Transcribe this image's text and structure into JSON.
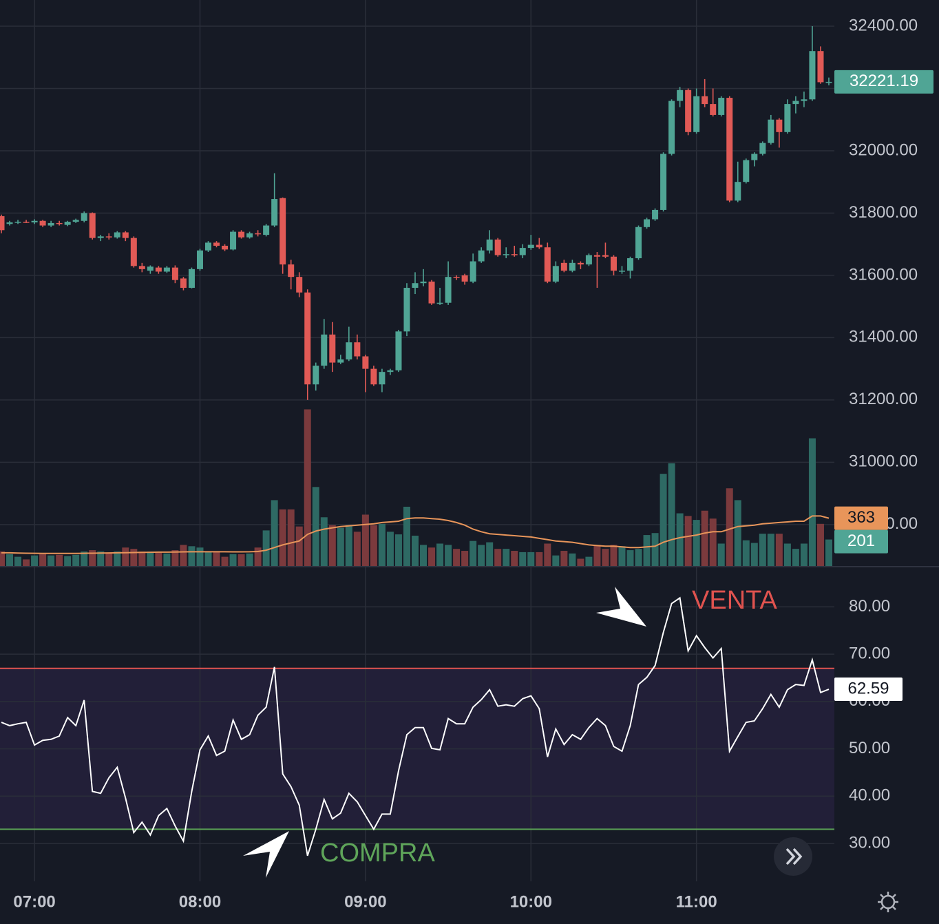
{
  "chart_data": [
    {
      "type": "candlestick",
      "x": [
        408,
        411,
        414,
        417,
        420,
        423,
        426,
        429,
        432,
        435,
        438,
        441,
        444,
        447,
        450,
        453,
        456,
        459,
        462,
        465,
        468,
        471,
        474,
        477,
        480,
        483,
        486,
        489,
        492,
        495,
        498,
        501,
        504,
        507,
        510,
        513,
        516,
        519,
        522,
        525,
        528,
        531,
        534,
        537,
        540,
        543,
        546,
        549,
        552,
        555,
        558,
        561,
        564,
        567,
        570,
        573,
        576,
        579,
        582,
        585,
        588,
        591,
        594,
        597,
        600,
        603,
        606,
        609,
        612,
        615,
        618,
        621,
        624,
        627,
        630,
        633,
        636,
        639,
        642,
        645,
        648,
        651,
        654,
        657,
        660,
        663,
        666,
        669,
        672,
        675,
        678,
        681,
        684,
        687,
        690,
        693,
        696,
        699,
        702,
        705,
        708
      ],
      "open": [
        31790,
        31765,
        31770,
        31772,
        31770,
        31775,
        31760,
        31768,
        31762,
        31772,
        31775,
        31800,
        31720,
        31725,
        31722,
        31738,
        31720,
        31630,
        31615,
        31625,
        31612,
        31625,
        31590,
        31560,
        31620,
        31680,
        31705,
        31695,
        31683,
        31740,
        31722,
        31735,
        31730,
        31760,
        31848,
        31635,
        31595,
        31545,
        31250,
        31310,
        31410,
        31320,
        31330,
        31385,
        31340,
        31300,
        31250,
        31290,
        31295,
        31420,
        31560,
        31575,
        31580,
        31510,
        31512,
        31595,
        31600,
        31580,
        31645,
        31680,
        31715,
        31665,
        31668,
        31665,
        31688,
        31698,
        31690,
        31580,
        31640,
        31615,
        31640,
        31635,
        31665,
        31665,
        31660,
        31615,
        31615,
        31655,
        31755,
        31780,
        31810,
        31990,
        32160,
        32195,
        32060,
        32175,
        32150,
        32115,
        32170,
        31840,
        31900,
        31970,
        31990,
        32025,
        32100,
        32060,
        32150,
        32160,
        32165,
        32320,
        32218
      ],
      "high": [
        31795,
        31775,
        31778,
        31778,
        31780,
        31778,
        31775,
        31775,
        31775,
        31782,
        31805,
        31802,
        31730,
        31735,
        31742,
        31742,
        31725,
        31640,
        31632,
        31630,
        31630,
        31632,
        31595,
        31625,
        31685,
        31710,
        31710,
        31700,
        31745,
        31745,
        31740,
        31745,
        31765,
        31928,
        31850,
        31650,
        31610,
        31555,
        31320,
        31460,
        31450,
        31345,
        31435,
        31410,
        31345,
        31310,
        31300,
        31300,
        31425,
        31575,
        31610,
        31620,
        31585,
        31560,
        31645,
        31600,
        31605,
        31670,
        31690,
        31745,
        31720,
        31690,
        31695,
        31700,
        31730,
        31720,
        31705,
        31645,
        31650,
        31650,
        31645,
        31670,
        31675,
        31705,
        31665,
        31630,
        31660,
        31760,
        31785,
        31815,
        31995,
        32165,
        32205,
        32200,
        32200,
        32230,
        32200,
        32175,
        32175,
        31965,
        31975,
        31995,
        32030,
        32115,
        32105,
        32165,
        32175,
        32190,
        32400,
        32335,
        32235
      ],
      "low": [
        31735,
        31760,
        31765,
        31768,
        31765,
        31755,
        31755,
        31760,
        31758,
        31768,
        31770,
        31715,
        31710,
        31715,
        31718,
        31710,
        31625,
        31610,
        31605,
        31605,
        31608,
        31575,
        31552,
        31558,
        31615,
        31675,
        31690,
        31678,
        31680,
        31718,
        31718,
        31725,
        31725,
        31755,
        31605,
        31555,
        31530,
        31200,
        31230,
        31300,
        31290,
        31315,
        31325,
        31330,
        31225,
        31245,
        31225,
        31280,
        31290,
        31405,
        31540,
        31565,
        31505,
        31505,
        31505,
        31585,
        31570,
        31575,
        31640,
        31670,
        31660,
        31655,
        31660,
        31655,
        31682,
        31685,
        31575,
        31575,
        31610,
        31610,
        31620,
        31630,
        31560,
        31655,
        31600,
        31605,
        31590,
        31650,
        31750,
        31775,
        31805,
        31985,
        32140,
        32050,
        32055,
        32140,
        32110,
        32110,
        31835,
        31835,
        31895,
        31950,
        31985,
        32020,
        32010,
        32055,
        32120,
        32140,
        32160,
        32215,
        32210
      ],
      "close": [
        31745,
        31770,
        31772,
        31770,
        31775,
        31760,
        31768,
        31765,
        31772,
        31778,
        31800,
        31720,
        31725,
        31722,
        31738,
        31720,
        31630,
        31620,
        31628,
        31612,
        31625,
        31585,
        31560,
        31620,
        31680,
        31705,
        31695,
        31683,
        31740,
        31722,
        31735,
        31732,
        31760,
        31845,
        31635,
        31595,
        31545,
        31250,
        31310,
        31410,
        31320,
        31330,
        31385,
        31340,
        31300,
        31250,
        31290,
        31295,
        31420,
        31560,
        31575,
        31580,
        31510,
        31512,
        31595,
        31592,
        31580,
        31645,
        31680,
        31715,
        31665,
        31668,
        31665,
        31688,
        31698,
        31690,
        31580,
        31630,
        31615,
        31640,
        31635,
        31665,
        31660,
        31660,
        31615,
        31615,
        31655,
        31755,
        31780,
        31810,
        31990,
        32160,
        32195,
        32060,
        32175,
        32150,
        32115,
        32170,
        31840,
        31900,
        31970,
        31990,
        32025,
        32100,
        32060,
        32150,
        32160,
        32165,
        32320,
        32220,
        32221.19
      ],
      "volume": [
        110,
        90,
        70,
        50,
        80,
        90,
        80,
        85,
        75,
        85,
        110,
        120,
        110,
        100,
        110,
        140,
        130,
        110,
        110,
        110,
        95,
        120,
        160,
        150,
        140,
        110,
        105,
        70,
        90,
        90,
        95,
        140,
        270,
        500,
        430,
        430,
        300,
        1190,
        600,
        370,
        310,
        290,
        310,
        260,
        390,
        310,
        320,
        260,
        240,
        450,
        230,
        160,
        140,
        170,
        160,
        130,
        115,
        190,
        160,
        180,
        130,
        130,
        115,
        105,
        105,
        105,
        170,
        80,
        115,
        95,
        55,
        70,
        160,
        130,
        160,
        150,
        120,
        130,
        235,
        250,
        700,
        780,
        400,
        380,
        350,
        420,
        360,
        170,
        590,
        500,
        195,
        175,
        245,
        245,
        245,
        170,
        130,
        170,
        970,
        320,
        201
      ],
      "volume_ma": [
        100,
        100,
        98,
        97,
        96,
        95,
        95,
        95,
        95,
        95,
        96,
        97,
        98,
        99,
        100,
        101,
        102,
        103,
        104,
        105,
        105,
        106,
        107,
        108,
        108,
        108,
        108,
        108,
        107,
        107,
        108,
        110,
        120,
        140,
        160,
        175,
        190,
        240,
        265,
        280,
        290,
        300,
        305,
        310,
        315,
        320,
        330,
        335,
        340,
        360,
        365,
        365,
        360,
        355,
        345,
        330,
        310,
        280,
        260,
        245,
        240,
        235,
        230,
        225,
        220,
        210,
        200,
        190,
        185,
        180,
        170,
        160,
        155,
        150,
        150,
        145,
        140,
        140,
        145,
        150,
        180,
        200,
        215,
        225,
        235,
        250,
        260,
        260,
        280,
        300,
        305,
        310,
        320,
        325,
        330,
        335,
        340,
        340,
        380,
        380,
        363
      ],
      "up_color": "#50a595",
      "down_color": "#e15a56",
      "volume_up_color": "#2e6a64",
      "volume_down_color": "#7b3a3d",
      "ma_color": "#e8955a",
      "xlim": [
        407.5,
        710
      ],
      "ylim": [
        30667,
        32484
      ],
      "yticks": [
        {
          "value": 32400,
          "label": "32400.00"
        },
        {
          "value": 32200,
          "label": "32200.00"
        },
        {
          "value": 32000,
          "label": "32000.00"
        },
        {
          "value": 31800,
          "label": "31800.00"
        },
        {
          "value": 31600,
          "label": "31600.00"
        },
        {
          "value": 31400,
          "label": "31400.00"
        },
        {
          "value": 31200,
          "label": "31200.00"
        },
        {
          "value": 31000,
          "label": "31000.00"
        },
        {
          "value": 30800,
          "label": "30800.00"
        }
      ],
      "volume_ylim": [
        0,
        4300
      ],
      "grid": true
    },
    {
      "type": "line",
      "x": [
        408,
        411,
        414,
        417,
        420,
        423,
        426,
        429,
        432,
        435,
        438,
        441,
        444,
        447,
        450,
        453,
        456,
        459,
        462,
        465,
        468,
        471,
        474,
        477,
        480,
        483,
        486,
        489,
        492,
        495,
        498,
        501,
        504,
        507,
        510,
        513,
        516,
        519,
        522,
        525,
        528,
        531,
        534,
        537,
        540,
        543,
        546,
        549,
        552,
        555,
        558,
        561,
        564,
        567,
        570,
        573,
        576,
        579,
        582,
        585,
        588,
        591,
        594,
        597,
        600,
        603,
        606,
        609,
        612,
        615,
        618,
        621,
        624,
        627,
        630,
        633,
        636,
        639,
        642,
        645,
        648,
        651,
        654,
        657,
        660,
        663,
        666,
        669,
        672,
        675,
        678,
        681,
        684,
        687,
        690,
        693,
        696,
        699,
        702,
        705,
        708
      ],
      "values": [
        55.6,
        54.9,
        55.3,
        55.6,
        50.8,
        51.8,
        52.0,
        52.7,
        56.6,
        54.9,
        60.3,
        41.0,
        40.6,
        43.9,
        46.1,
        39.6,
        32.3,
        34.5,
        31.8,
        35.9,
        37.4,
        33.7,
        30.5,
        41.0,
        49.8,
        52.7,
        48.6,
        49.5,
        56.1,
        52.0,
        53.0,
        57.1,
        58.8,
        67.3,
        44.7,
        42.0,
        38.1,
        27.4,
        33.0,
        39.3,
        35.2,
        36.4,
        40.6,
        38.8,
        35.9,
        33.0,
        36.2,
        36.2,
        45.4,
        53.0,
        54.5,
        54.5,
        50.1,
        49.8,
        56.4,
        55.3,
        55.3,
        58.8,
        60.4,
        62.5,
        59.0,
        59.3,
        59.0,
        60.6,
        61.2,
        58.5,
        48.3,
        54.2,
        50.9,
        53.0,
        52.0,
        54.5,
        56.4,
        54.9,
        50.5,
        49.5,
        54.9,
        63.6,
        65.1,
        67.6,
        74.6,
        80.7,
        81.9,
        70.7,
        73.9,
        71.4,
        69.2,
        71.2,
        49.5,
        52.6,
        55.6,
        55.9,
        58.5,
        61.5,
        58.8,
        62.5,
        63.6,
        63.4,
        68.8,
        61.9,
        62.59
      ],
      "color": "#ffffff",
      "upper_band": 67,
      "lower_band": 33,
      "upper_color": "#e0534f",
      "lower_color": "#5a9e55",
      "band_fill": "#221f38",
      "xlim": [
        407.5,
        710
      ],
      "ylim": [
        22,
        88.5
      ],
      "yticks": [
        {
          "value": 80,
          "label": "80.00"
        },
        {
          "value": 70,
          "label": "70.00"
        },
        {
          "value": 60,
          "label": "60.00"
        },
        {
          "value": 50,
          "label": "50.00"
        },
        {
          "value": 40,
          "label": "40.00"
        },
        {
          "value": 30,
          "label": "30.00"
        }
      ],
      "xticks": [
        {
          "value": 420,
          "label": "07:00"
        },
        {
          "value": 480,
          "label": "08:00"
        },
        {
          "value": 540,
          "label": "09:00"
        },
        {
          "value": 600,
          "label": "10:00"
        },
        {
          "value": 660,
          "label": "11:00"
        }
      ],
      "annotations": [
        "VENTA",
        "COMPRA"
      ],
      "grid": true
    }
  ]
}
